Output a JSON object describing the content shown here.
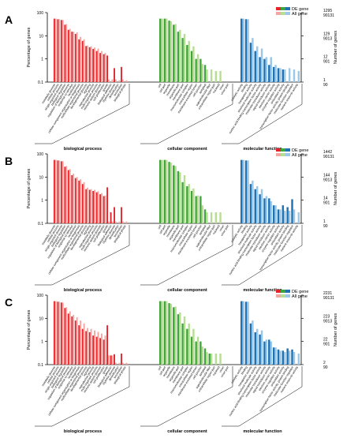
{
  "colors": {
    "bp_de": "#e4232a",
    "bp_all": "#f2a6a1",
    "cc_de": "#3fa63a",
    "cc_all": "#b7dd95",
    "mf_de": "#1f72b4",
    "mf_all": "#9cc7e6",
    "axis": "#000000"
  },
  "shared": {
    "ylabel_left": "Percentage of genes",
    "ylabel_right": "Number of genes",
    "left_ticks": [
      "100",
      "10",
      "1",
      "0.1"
    ],
    "legend": {
      "de": "DE gene",
      "all": "All gene"
    },
    "group_labels": [
      "biological process",
      "cellular component",
      "molecular function"
    ]
  },
  "chart_data": [
    {
      "type": "bar",
      "panel": "A",
      "right_ticks": [
        [
          "1295",
          "90131"
        ],
        [
          "129",
          "9013"
        ],
        [
          "12",
          "901"
        ],
        [
          "1",
          "90"
        ]
      ],
      "categories": {
        "bp": [
          "metabolic process",
          "cellular process",
          "single-organism process",
          "biological regulation",
          "regulation of biological process",
          "response to stimulus",
          "localization",
          "cellular component organization or biogenesis",
          "multicellular organismal process",
          "developmental process",
          "signaling",
          "reproductive process",
          "multi-organism process",
          "immune system process",
          "cell proliferation",
          "growth",
          "biological adhesion",
          "rhythmic process",
          "detoxification",
          "locomotion",
          "biological phase"
        ],
        "cc": [
          "cell",
          "cell part",
          "organelle",
          "membrane",
          "organelle part",
          "membrane part",
          "macromolecular complex",
          "extracellular region",
          "membrane-enclosed lumen",
          "cell junction",
          "symplast",
          "supramolecular fiber",
          "extracellular region part",
          "nucleoid",
          "virion",
          "virion part"
        ],
        "mf": [
          "catalytic activity",
          "binding",
          "transporter activity",
          "structural molecule activity",
          "nucleic acid binding transcription factor activity",
          "molecular transducer activity",
          "signal transducer activity",
          "electron carrier activity",
          "enzyme regulator activity",
          "antioxidant activity",
          "transcription factor activity, protein binding",
          "molecular function regulator",
          "nutrient reservoir activity"
        ]
      },
      "series": [
        {
          "name": "DE gene",
          "values": {
            "bp": [
              55,
              52,
              48,
              30,
              18,
              15,
              12,
              7,
              6,
              3.6,
              3.2,
              2.7,
              2.2,
              1.8,
              1.6,
              1.4,
              null,
              0.4,
              null,
              0.45,
              null
            ],
            "cc": [
              55,
              55,
              45,
              30,
              15,
              8,
              4,
              2.2,
              1.0,
              1.0,
              0.55,
              null,
              null,
              null,
              null,
              null
            ],
            "mf": [
              55,
              52,
              5,
              2.2,
              1.2,
              1.0,
              0.55,
              0.45,
              0.4,
              0.35,
              null,
              null,
              null
            ]
          }
        },
        {
          "name": "All gene",
          "values": {
            "bp": [
              55,
              52,
              48,
              32,
              20,
              15,
              14,
              9,
              7,
              3.8,
              3.5,
              3.1,
              2.8,
              2.2,
              1.8,
              0.13,
              0.13,
              0.13,
              0.12,
              0.13,
              0.12
            ],
            "cc": [
              55,
              55,
              42,
              32,
              18,
              12,
              6,
              3.5,
              1.6,
              0.6,
              0.35,
              0.35,
              0.3,
              0.3,
              null,
              null
            ],
            "mf": [
              55,
              52,
              8,
              3.5,
              2.8,
              1.2,
              1.2,
              0.55,
              0.4,
              0.35,
              0.4,
              0.35,
              0.3
            ]
          }
        }
      ]
    },
    {
      "type": "bar",
      "panel": "B",
      "right_ticks": [
        [
          "1442",
          "90131"
        ],
        [
          "144",
          "9013"
        ],
        [
          "14",
          "901"
        ],
        [
          "1",
          "90"
        ]
      ],
      "categories": {
        "bp": [
          "metabolic process",
          "cellular process",
          "single-organism process",
          "biological regulation",
          "regulation of biological process",
          "response to stimulus",
          "localization",
          "cellular component organization or biogenesis",
          "multicellular organismal process",
          "developmental process",
          "signaling",
          "reproductive process",
          "multi-organism process",
          "immune system process",
          "cell proliferation",
          "growth",
          "biological adhesion",
          "rhythmic process",
          "detoxification",
          "locomotion",
          "biological phase"
        ],
        "cc": [
          "cell",
          "cell part",
          "organelle",
          "membrane",
          "organelle part",
          "membrane part",
          "macromolecular complex",
          "extracellular region",
          "membrane-enclosed lumen",
          "cell junction",
          "symplast",
          "supramolecular fiber",
          "extracellular region part",
          "nucleoid",
          "virion",
          "virion part"
        ],
        "mf": [
          "catalytic activity",
          "binding",
          "transporter activity",
          "structural molecule activity",
          "nucleic acid binding transcription factor activity",
          "molecular transducer activity",
          "signal transducer activity",
          "electron carrier activity",
          "enzyme regulator activity",
          "antioxidant activity",
          "transcription factor activity, protein binding",
          "molecular function regulator",
          "nutrient reservoir activity"
        ]
      },
      "series": [
        {
          "name": "DE gene",
          "values": {
            "bp": [
              55,
              52,
              48,
              28,
              20,
              12,
              9,
              7,
              5,
              3,
              2.8,
              2.5,
              2.2,
              1.8,
              1.5,
              3.6,
              0.3,
              0.5,
              null,
              0.5,
              null
            ],
            "cc": [
              55,
              55,
              45,
              32,
              18,
              6,
              4,
              2.5,
              1.5,
              1.5,
              0.4,
              null,
              null,
              null,
              null,
              null
            ],
            "mf": [
              55,
              52,
              5,
              3,
              1.8,
              1.2,
              1.2,
              0.6,
              0.4,
              0.6,
              0.5,
              1.1,
              null
            ]
          }
        },
        {
          "name": "All gene",
          "values": {
            "bp": [
              55,
              52,
              48,
              30,
              22,
              14,
              10,
              8,
              6,
              3.5,
              3,
              2.8,
              2.4,
              2,
              1.6,
              0.12,
              0.12,
              0.12,
              0.12,
              0.12,
              0.12
            ],
            "cc": [
              55,
              55,
              42,
              30,
              16,
              12,
              5,
              3.2,
              1.6,
              0.6,
              0.3,
              0.3,
              0.3,
              0.3,
              null,
              null
            ],
            "mf": [
              55,
              52,
              7,
              4,
              3,
              1.5,
              0.9,
              0.6,
              0.4,
              0.35,
              0.35,
              0.4,
              0.3
            ]
          }
        }
      ]
    },
    {
      "type": "bar",
      "panel": "C",
      "right_ticks": [
        [
          "2231",
          "90131"
        ],
        [
          "223",
          "9013"
        ],
        [
          "22",
          "901"
        ],
        [
          "2",
          "90"
        ]
      ],
      "categories": {
        "bp": [
          "metabolic process",
          "cellular process",
          "single-organism process",
          "biological regulation",
          "regulation of biological process",
          "response to stimulus",
          "localization",
          "cellular component organization or biogenesis",
          "multicellular organismal process",
          "developmental process",
          "signaling",
          "reproductive process",
          "multi-organism process",
          "immune system process",
          "cell proliferation",
          "growth",
          "biological adhesion",
          "rhythmic process",
          "detoxification",
          "locomotion",
          "biological phase"
        ],
        "cc": [
          "cell",
          "cell part",
          "organelle",
          "membrane",
          "organelle part",
          "membrane part",
          "macromolecular complex",
          "extracellular region",
          "membrane-enclosed lumen",
          "cell junction",
          "symplast",
          "supramolecular fiber",
          "extracellular region part",
          "nucleoid",
          "virion",
          "virion part"
        ],
        "mf": [
          "catalytic activity",
          "binding",
          "transporter activity",
          "structural molecule activity",
          "nucleic acid binding transcription factor activity",
          "molecular transducer activity",
          "signal transducer activity",
          "electron carrier activity",
          "enzyme regulator activity",
          "antioxidant activity",
          "transcription factor activity, protein binding",
          "molecular function regulator",
          "nutrient reservoir activity"
        ]
      },
      "series": [
        {
          "name": "DE gene",
          "values": {
            "bp": [
              55,
              52,
              48,
              28,
              16,
              12,
              8,
              5,
              3.5,
              2.8,
              2.5,
              1.8,
              1.6,
              1.4,
              1.2,
              5.0,
              0.25,
              0.28,
              null,
              0.3,
              null
            ],
            "cc": [
              55,
              55,
              45,
              30,
              15,
              6,
              3.5,
              1.6,
              1.0,
              1.0,
              0.5,
              0.3,
              null,
              null,
              null,
              null
            ],
            "mf": [
              55,
              52,
              6,
              2.5,
              2,
              1,
              1.2,
              0.55,
              0.45,
              0.4,
              0.5,
              0.45,
              null
            ]
          }
        },
        {
          "name": "All gene",
          "values": {
            "bp": [
              55,
              52,
              48,
              30,
              20,
              14,
              11,
              8,
              6,
              3.8,
              3.5,
              3,
              2.6,
              2.2,
              1.8,
              0.25,
              0.25,
              0.12,
              0.12,
              0.12,
              0.12
            ],
            "cc": [
              55,
              55,
              42,
              32,
              18,
              12,
              6,
              3.5,
              1.6,
              0.6,
              0.35,
              0.3,
              0.3,
              0.3,
              null,
              null
            ],
            "mf": [
              55,
              52,
              8,
              3.5,
              3,
              1.2,
              1,
              0.55,
              0.4,
              0.35,
              0.4,
              0.35,
              0.3
            ]
          }
        }
      ]
    }
  ]
}
